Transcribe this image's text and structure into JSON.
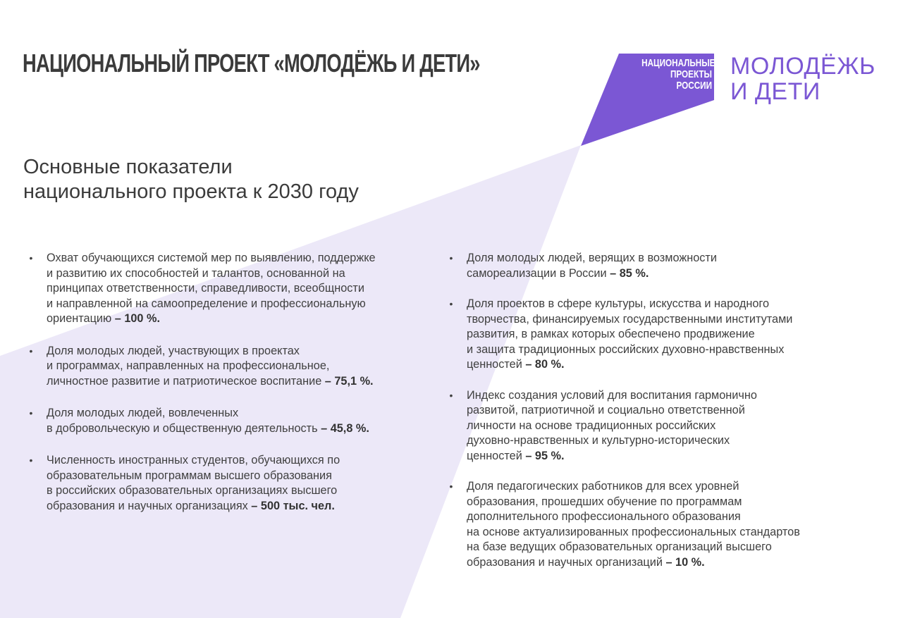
{
  "header": {
    "title": "НАЦИОНАЛЬНЫЙ ПРОЕКТ «МОЛОДЁЖЬ И ДЕТИ»"
  },
  "logo": {
    "np_lines": [
      "НАЦИОНАЛЬНЫЕ",
      "ПРОЕКТЫ",
      "РОССИИ"
    ],
    "brand_lines": [
      "МОЛОДЁЖЬ",
      "И ДЕТИ"
    ]
  },
  "subtitle": {
    "lines": [
      "Основные показатели",
      "национального проекта к 2030 году"
    ]
  },
  "colors": {
    "accent": "#7b57d4",
    "beam": "#ece8f8",
    "text": "#404040",
    "title": "#3b3b3b"
  },
  "left_items": [
    {
      "lines": [
        "Охват обучающихся системой мер по выявлению, поддержке",
        "и развитию их способностей и талантов, основанной на",
        "принципах ответственности, справедливости, всеобщности",
        "и направленной на самоопределение и профессиональную",
        "ориентацию"
      ],
      "value": " – 100 %."
    },
    {
      "lines": [
        "Доля молодых людей, участвующих в проектах",
        "и программах, направленных на профессиональное,",
        "личностное развитие и патриотическое воспитание"
      ],
      "value": " – 75,1 %."
    },
    {
      "lines": [
        "Доля молодых людей, вовлеченных",
        "в добровольческую и общественную деятельность"
      ],
      "value": " – 45,8 %."
    },
    {
      "lines": [
        "Численность иностранных студентов, обучающихся по",
        "образовательным программам высшего образования",
        "в российских образовательных организациях высшего",
        "образования и научных организациях"
      ],
      "value": " – 500 тыс. чел."
    }
  ],
  "right_items": [
    {
      "lines": [
        "Доля молодых людей, верящих в возможности",
        "самореализации в России"
      ],
      "value": " – 85 %."
    },
    {
      "lines": [
        "Доля проектов в сфере культуры, искусства и народного",
        "творчества, финансируемых государственными институтами",
        "развития, в рамках которых обеспечено продвижение",
        "и защита традиционных российских духовно-нравственных",
        "ценностей"
      ],
      "value": " – 80 %."
    },
    {
      "lines": [
        "Индекс создания условий для воспитания гармонично",
        "развитой, патриотичной и социально ответственной",
        "личности на основе традиционных российских",
        "духовно-нравственных и культурно-исторических",
        "ценностей"
      ],
      "value": " – 95 %."
    },
    {
      "lines": [
        "Доля педагогических работников для всех уровней",
        "образования, прошедших обучение по программам",
        "дополнительного профессионального образования",
        "на основе актуализированных профессиональных стандартов",
        "на базе ведущих образовательных организаций высшего",
        "образования и научных организаций"
      ],
      "value": " – 10 %."
    }
  ]
}
